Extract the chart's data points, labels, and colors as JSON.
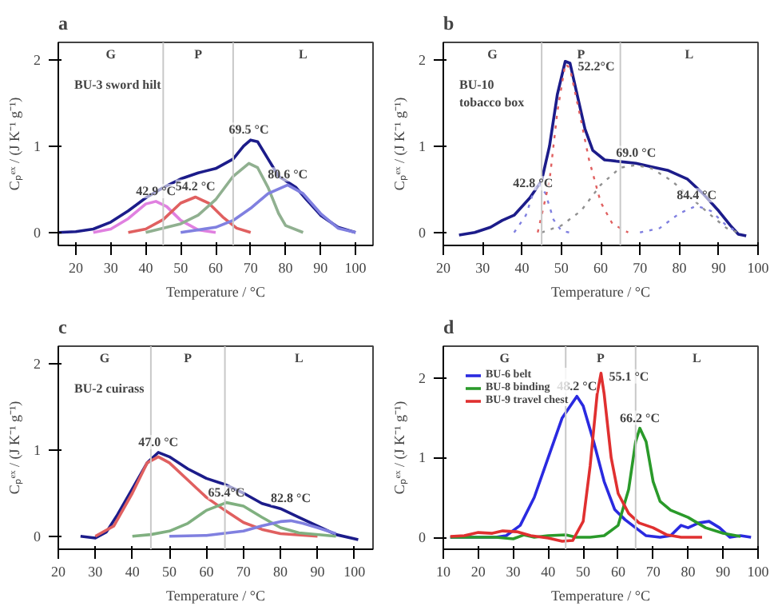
{
  "chart_data": [
    {
      "type": "line",
      "title": "a",
      "xlabel": "Temperature / °C",
      "ylabel": "Cₚᵉˣ / (J K⁻¹ g⁻¹)",
      "xlim": [
        15,
        105
      ],
      "xticks": [
        20,
        30,
        40,
        50,
        60,
        70,
        80,
        90,
        100
      ],
      "ylim": [
        -0.15,
        2.2
      ],
      "yticks": [
        0,
        1,
        2
      ],
      "grid": false,
      "legend": false,
      "line_style": "solid",
      "series": [
        {
          "color": "#1c1c8a",
          "x": [
            15,
            20,
            25,
            30,
            35,
            40,
            45,
            50,
            55,
            60,
            65,
            68,
            70,
            72,
            75,
            78,
            80,
            83,
            86,
            90,
            95,
            100
          ],
          "values": [
            0,
            0.01,
            0.04,
            0.12,
            0.25,
            0.4,
            0.52,
            0.62,
            0.69,
            0.74,
            0.85,
            1.0,
            1.07,
            1.05,
            0.85,
            0.65,
            0.6,
            0.52,
            0.38,
            0.2,
            0.06,
            0
          ]
        },
        {
          "color": "#e080e0",
          "x": [
            25,
            30,
            35,
            40,
            42.9,
            46,
            50,
            55,
            60
          ],
          "values": [
            0,
            0.04,
            0.16,
            0.33,
            0.36,
            0.3,
            0.14,
            0.03,
            0
          ]
        },
        {
          "color": "#e06060",
          "x": [
            35,
            40,
            45,
            50,
            54.2,
            58,
            62,
            66,
            70
          ],
          "values": [
            0,
            0.04,
            0.15,
            0.34,
            0.41,
            0.34,
            0.18,
            0.05,
            0
          ]
        },
        {
          "color": "#90b090",
          "x": [
            40,
            50,
            55,
            60,
            65,
            69.5,
            72,
            75,
            78,
            80,
            85
          ],
          "values": [
            0,
            0.1,
            0.2,
            0.38,
            0.65,
            0.8,
            0.75,
            0.52,
            0.22,
            0.08,
            0
          ]
        },
        {
          "color": "#8080e0",
          "x": [
            50,
            60,
            65,
            70,
            75,
            80.6,
            85,
            90,
            95,
            100
          ],
          "values": [
            0,
            0.06,
            0.14,
            0.28,
            0.45,
            0.55,
            0.45,
            0.22,
            0.05,
            0
          ]
        }
      ],
      "ref_lines": [
        {
          "axis": "x",
          "value": 45,
          "color": "#c8c8c8"
        },
        {
          "axis": "x",
          "value": 65,
          "color": "#c8c8c8"
        }
      ],
      "annotations": [
        "G",
        "P",
        "L",
        "BU-3 sword hilt",
        {
          "text": "42.9 °C",
          "x": 42.9,
          "y": 0.36
        },
        {
          "text": "54.2 °C",
          "x": 54.2,
          "y": 0.41
        },
        {
          "text": "69.5 °C",
          "x": 69.5,
          "y": 1.07
        },
        {
          "text": "80.6 °C",
          "x": 80.6,
          "y": 0.55
        }
      ]
    },
    {
      "type": "line",
      "title": "b",
      "xlabel": "Temperature / °C",
      "ylabel": "Cₚᵉˣ / (J K⁻¹ g⁻¹)",
      "xlim": [
        20,
        100
      ],
      "xticks": [
        20,
        30,
        40,
        50,
        60,
        70,
        80,
        90,
        100
      ],
      "ylim": [
        -0.15,
        2.2
      ],
      "yticks": [
        0,
        1,
        2
      ],
      "grid": false,
      "legend": false,
      "line_style": "dotted",
      "series": [
        {
          "color": "#1c1c8a",
          "line_style": "solid",
          "x": [
            24,
            28,
            32,
            35,
            38,
            42,
            45,
            47,
            49,
            51,
            52.2,
            54,
            56,
            58,
            61,
            65,
            69,
            73,
            77,
            82,
            86,
            90,
            93,
            95,
            97
          ],
          "values": [
            -0.03,
            0,
            0.06,
            0.14,
            0.2,
            0.4,
            0.6,
            1.0,
            1.6,
            1.98,
            1.96,
            1.6,
            1.2,
            0.95,
            0.84,
            0.82,
            0.8,
            0.76,
            0.72,
            0.62,
            0.45,
            0.25,
            0.08,
            -0.02,
            -0.04
          ]
        },
        {
          "color": "#8080e0",
          "x": [
            38,
            41,
            42.8,
            44,
            46,
            48,
            50,
            52
          ],
          "values": [
            0,
            0.2,
            0.45,
            0.58,
            0.45,
            0.15,
            0.02,
            0
          ]
        },
        {
          "color": "#e06060",
          "x": [
            44,
            47,
            49,
            51,
            52.2,
            55,
            57,
            60,
            63,
            67
          ],
          "values": [
            0,
            0.6,
            1.4,
            1.95,
            1.9,
            1.3,
            0.85,
            0.35,
            0.1,
            0
          ]
        },
        {
          "color": "#909090",
          "x": [
            45,
            50,
            55,
            60,
            65,
            69,
            73,
            78,
            83,
            88,
            92,
            95
          ],
          "values": [
            0,
            0.08,
            0.25,
            0.55,
            0.75,
            0.78,
            0.74,
            0.6,
            0.4,
            0.2,
            0.05,
            0
          ]
        },
        {
          "color": "#8080e0",
          "x": [
            70,
            75,
            80,
            84.4,
            88,
            92,
            95
          ],
          "values": [
            0,
            0.05,
            0.22,
            0.31,
            0.25,
            0.08,
            0
          ]
        }
      ],
      "ref_lines": [
        {
          "axis": "x",
          "value": 45,
          "color": "#c8c8c8"
        },
        {
          "axis": "x",
          "value": 65,
          "color": "#c8c8c8"
        }
      ],
      "annotations": [
        "G",
        "P",
        "L",
        "BU-10",
        "tobacco box",
        {
          "text": "52.2°C",
          "x": 52.2,
          "y": 1.96
        },
        {
          "text": "42.8 °C",
          "x": 42.8,
          "y": 0.45
        },
        {
          "text": "69.0 °C",
          "x": 69,
          "y": 0.8
        },
        {
          "text": "84.4 °C",
          "x": 84.4,
          "y": 0.31
        }
      ]
    },
    {
      "type": "line",
      "title": "c",
      "xlabel": "Temperature / °C",
      "ylabel": "Cₚᵉˣ / (J K⁻¹ g⁻¹)",
      "xlim": [
        20,
        105
      ],
      "xticks": [
        20,
        30,
        40,
        50,
        60,
        70,
        80,
        90,
        100
      ],
      "ylim": [
        -0.15,
        2.2
      ],
      "yticks": [
        0,
        1,
        2
      ],
      "grid": false,
      "legend": false,
      "line_style": "solid",
      "series": [
        {
          "color": "#1c1c8a",
          "x": [
            26,
            30,
            33,
            36,
            40,
            44,
            47,
            50,
            55,
            60,
            65,
            70,
            75,
            80,
            85,
            90,
            95,
            101
          ],
          "values": [
            0,
            -0.02,
            0.05,
            0.25,
            0.55,
            0.85,
            0.97,
            0.92,
            0.78,
            0.67,
            0.6,
            0.5,
            0.38,
            0.32,
            0.22,
            0.12,
            0.02,
            -0.04
          ]
        },
        {
          "color": "#e06060",
          "x": [
            30,
            35,
            40,
            44,
            47,
            50,
            55,
            60,
            65,
            70,
            75,
            80,
            90
          ],
          "values": [
            0,
            0.12,
            0.5,
            0.85,
            0.92,
            0.85,
            0.65,
            0.45,
            0.3,
            0.16,
            0.08,
            0.03,
            0
          ]
        },
        {
          "color": "#80b080",
          "x": [
            40,
            45,
            50,
            55,
            60,
            65.4,
            70,
            75,
            80,
            85,
            95
          ],
          "values": [
            0,
            0.02,
            0.06,
            0.15,
            0.3,
            0.39,
            0.35,
            0.22,
            0.1,
            0.04,
            0
          ]
        },
        {
          "color": "#8080e0",
          "x": [
            50,
            60,
            70,
            75,
            80,
            82.8,
            86,
            90,
            95
          ],
          "values": [
            0,
            0.01,
            0.06,
            0.12,
            0.17,
            0.18,
            0.15,
            0.1,
            0.03
          ]
        }
      ],
      "ref_lines": [
        {
          "axis": "x",
          "value": 45,
          "color": "#c8c8c8"
        },
        {
          "axis": "x",
          "value": 65,
          "color": "#c8c8c8"
        }
      ],
      "annotations": [
        "G",
        "P",
        "L",
        "BU-2 cuirass",
        {
          "text": "47.0 °C",
          "x": 47,
          "y": 0.97
        },
        {
          "text": "65.4°C",
          "x": 65.4,
          "y": 0.39
        },
        {
          "text": "82.8 °C",
          "x": 82.8,
          "y": 0.32
        }
      ]
    },
    {
      "type": "line",
      "title": "d",
      "xlabel": "Temperature / °C",
      "ylabel": "Cₚᵉˣ / (J K⁻¹ g⁻¹)",
      "xlim": [
        10,
        100
      ],
      "xticks": [
        10,
        20,
        30,
        40,
        50,
        60,
        70,
        80,
        90,
        100
      ],
      "ylim": [
        -0.15,
        2.4
      ],
      "yticks": [
        0,
        1,
        2
      ],
      "grid": false,
      "legend": "top left",
      "line_style": "solid",
      "series": [
        {
          "name": "BU-6 belt",
          "color": "#2a2ae0",
          "x": [
            12,
            20,
            25,
            28,
            32,
            36,
            40,
            44,
            48.2,
            50,
            53,
            56,
            59,
            62,
            65,
            68,
            72,
            75,
            78,
            80,
            83,
            86,
            89,
            92,
            95,
            98
          ],
          "values": [
            0,
            0,
            0,
            0.02,
            0.15,
            0.5,
            1.0,
            1.5,
            1.77,
            1.65,
            1.2,
            0.7,
            0.35,
            0.22,
            0.12,
            0.02,
            0,
            0.02,
            0.15,
            0.12,
            0.18,
            0.2,
            0.12,
            0,
            0.02,
            0
          ]
        },
        {
          "name": "BU-8 binding",
          "color": "#2a9a2a",
          "x": [
            12,
            25,
            30,
            33,
            36,
            40,
            45,
            48,
            52,
            56,
            60,
            63,
            65,
            66.2,
            68,
            70,
            72,
            75,
            80,
            85,
            90,
            95
          ],
          "values": [
            0,
            0,
            -0.02,
            0.03,
            0,
            0.02,
            0.03,
            0,
            0,
            0.02,
            0.15,
            0.6,
            1.2,
            1.37,
            1.2,
            0.7,
            0.45,
            0.34,
            0.25,
            0.12,
            0.05,
            0.01
          ]
        },
        {
          "name": "BU-9 travel chest",
          "color": "#e03030",
          "x": [
            12,
            16,
            20,
            24,
            27,
            31,
            35,
            40,
            44,
            47,
            50,
            52,
            54,
            55.1,
            56,
            58,
            60,
            63,
            66,
            70,
            74,
            78,
            84
          ],
          "values": [
            0.01,
            0.02,
            0.06,
            0.05,
            0.08,
            0.07,
            0.02,
            -0.01,
            -0.05,
            -0.04,
            0.2,
            0.9,
            1.8,
            2.06,
            1.8,
            1.0,
            0.55,
            0.3,
            0.18,
            0.12,
            0.03,
            0,
            0
          ]
        }
      ],
      "ref_lines": [
        {
          "axis": "x",
          "value": 45,
          "color": "#c8c8c8"
        },
        {
          "axis": "x",
          "value": 65,
          "color": "#c8c8c8"
        }
      ],
      "annotations": [
        "G",
        "P",
        "L",
        {
          "text": "48.2 °C",
          "x": 48.2,
          "y": 1.77
        },
        {
          "text": "55.1 °C",
          "x": 55.1,
          "y": 2.06
        },
        {
          "text": "66.2 °C",
          "x": 66.2,
          "y": 1.37
        }
      ]
    }
  ]
}
